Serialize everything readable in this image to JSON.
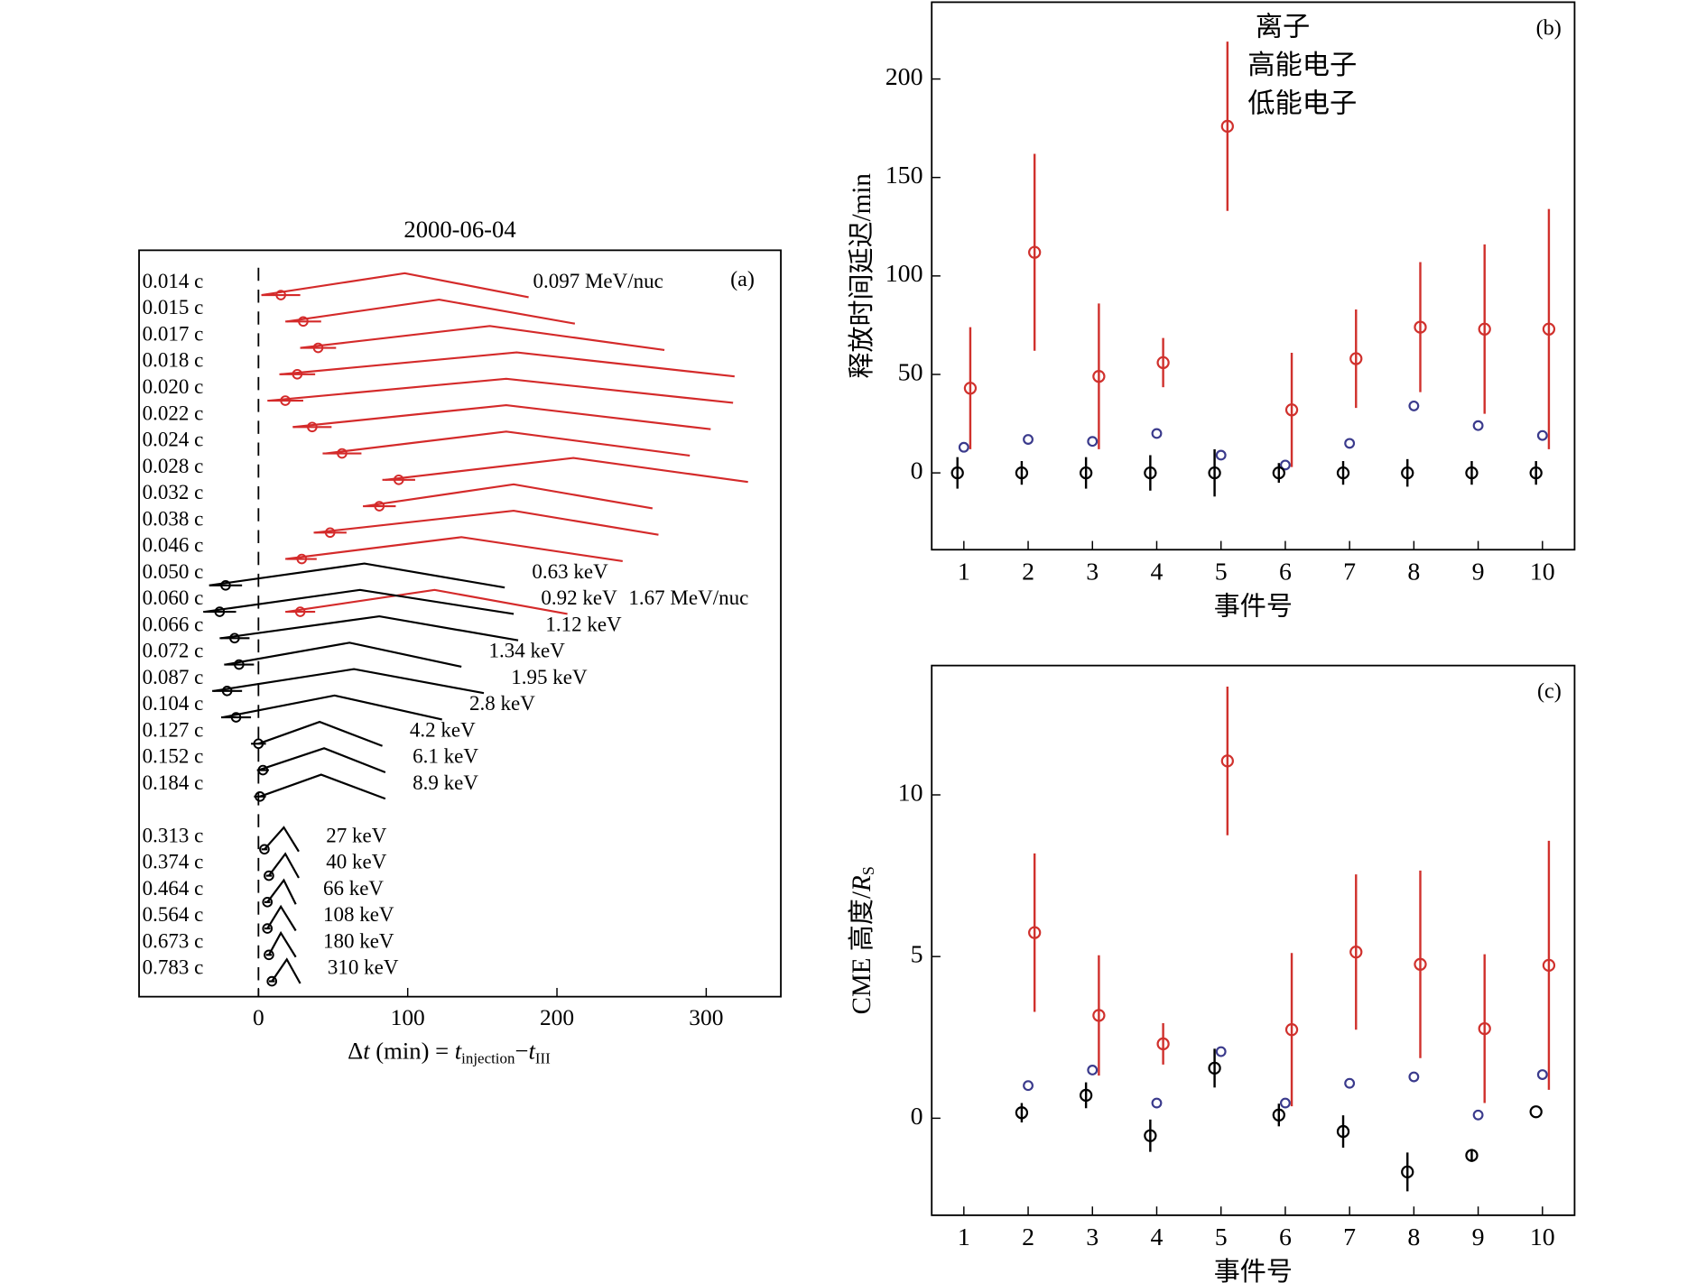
{
  "chart_data": [
    {
      "type": "dispersion",
      "title": "2000-06-04",
      "panel": "(a)",
      "categories": [
        "0.014 c",
        "0.015 c",
        "0.017 c",
        "0.018 c",
        "0.020 c",
        "0.022 c",
        "0.024 c",
        "0.028 c",
        "0.032 c",
        "0.038 c",
        "0.046 c",
        "0.050 c",
        "0.060 c",
        "0.066 c",
        "0.072 c",
        "0.087 c",
        "0.104 c",
        "0.127 c",
        "0.152 c",
        "0.184 c",
        null,
        "0.313 c",
        "0.374 c",
        "0.464 c",
        "0.564 c",
        "0.673 c",
        "0.783 c"
      ],
      "xlim": [
        -80,
        350
      ],
      "xticks": [
        0,
        100,
        200,
        300
      ],
      "reference_line": 0,
      "xlabel": [
        "Δ",
        "t",
        " (min) = ",
        "t",
        "injection",
        "−",
        "t",
        "III"
      ],
      "series": [
        {
          "name": "0.097 MeV/nuc",
          "color": "#d42a2a",
          "values": [
            15,
            30,
            40,
            26,
            18,
            36,
            56,
            94,
            81,
            48,
            29,
            null,
            null,
            null,
            null,
            null,
            null,
            null,
            null,
            null,
            null,
            null,
            null,
            null,
            null,
            null,
            null
          ],
          "errors": [
            13,
            12,
            12,
            12,
            12,
            13,
            13,
            11,
            11,
            11,
            10,
            null,
            null,
            null,
            null,
            null,
            null,
            null,
            null,
            null,
            null,
            null,
            null,
            null,
            null,
            null,
            null
          ],
          "profiles": [
            [
              2,
              98,
              181
            ],
            [
              19,
              121,
              212
            ],
            [
              28,
              155,
              272
            ],
            [
              15,
              173,
              319
            ],
            [
              7,
              166,
              318
            ],
            [
              23,
              166,
              303
            ],
            [
              45,
              166,
              289
            ],
            [
              85,
              211,
              328
            ],
            [
              71,
              171,
              264
            ],
            [
              38,
              171,
              268
            ],
            [
              18,
              136,
              244
            ],
            null,
            null,
            null,
            null,
            null,
            null,
            null,
            null,
            null,
            null,
            null,
            null,
            null,
            null,
            null,
            null
          ]
        },
        {
          "name": "1.67 MeV/nuc",
          "color": "#d42a2a",
          "values": [
            null,
            null,
            null,
            null,
            null,
            null,
            null,
            null,
            null,
            null,
            null,
            null,
            28,
            null,
            null,
            null,
            null,
            null,
            null,
            null,
            null,
            null,
            null,
            null,
            null,
            null,
            null
          ],
          "errors": [
            null,
            null,
            null,
            null,
            null,
            null,
            null,
            null,
            null,
            null,
            null,
            null,
            10,
            null,
            null,
            null,
            null,
            null,
            null,
            null,
            null,
            null,
            null,
            null,
            null,
            null,
            null
          ],
          "profiles": [
            null,
            null,
            null,
            null,
            null,
            null,
            null,
            null,
            null,
            null,
            null,
            null,
            [
              19,
              118,
              207
            ],
            null,
            null,
            null,
            null,
            null,
            null,
            null,
            null,
            null,
            null,
            null,
            null,
            null,
            null
          ]
        },
        {
          "color": "#000000",
          "values": [
            null,
            null,
            null,
            null,
            null,
            null,
            null,
            null,
            null,
            null,
            null,
            -22,
            -26,
            -16,
            -13,
            -21,
            -15,
            0,
            3,
            1,
            null,
            4,
            7,
            6,
            6,
            7,
            9
          ],
          "errors": [
            null,
            null,
            null,
            null,
            null,
            null,
            null,
            null,
            null,
            null,
            null,
            11,
            11,
            10,
            10,
            10,
            10,
            5,
            4,
            4,
            null,
            2,
            2,
            2,
            2,
            2,
            2
          ],
          "profiles": [
            null,
            null,
            null,
            null,
            null,
            null,
            null,
            null,
            null,
            null,
            null,
            [
              -33,
              71,
              165
            ],
            [
              -36,
              68,
              171
            ],
            [
              -25,
              81,
              174
            ],
            [
              -22,
              61,
              136
            ],
            [
              -30,
              64,
              151
            ],
            [
              -24,
              51,
              123
            ],
            [
              0,
              41,
              83
            ],
            [
              0,
              44,
              85
            ],
            [
              1,
              42,
              85
            ],
            null,
            [
              4,
              17,
              27
            ],
            [
              7,
              18,
              27
            ],
            [
              6,
              17,
              25
            ],
            [
              6,
              15,
              25
            ],
            [
              7,
              15,
              25
            ],
            [
              9,
              19,
              28
            ]
          ],
          "labels": [
            null,
            null,
            null,
            null,
            null,
            null,
            null,
            null,
            null,
            null,
            null,
            "0.63 keV",
            "0.92 keV",
            "1.12 keV",
            "1.34 keV",
            "1.95 keV",
            "2.8 keV",
            "4.2 keV",
            "6.1 keV",
            "8.9 keV",
            null,
            "27 keV",
            "40 keV",
            "66 keV",
            "108 keV",
            "180 keV",
            "310 keV"
          ]
        }
      ]
    },
    {
      "type": "scatter",
      "panel": "(b)",
      "ylabel": [
        "释放时间延迟/min"
      ],
      "xlabel": "事件号",
      "xlim": [
        0.5,
        10.5
      ],
      "xticks": [
        1,
        2,
        3,
        4,
        5,
        6,
        7,
        8,
        9,
        10
      ],
      "ylim": [
        -39,
        239
      ],
      "yticks": [
        0,
        50,
        100,
        150,
        200
      ],
      "legend": "top",
      "series": [
        {
          "name": "离子",
          "color": "#d0312d",
          "x": [
            1.1,
            2.1,
            3.1,
            4.1,
            5.1,
            6.1,
            7.1,
            8.1,
            9.1,
            10.1
          ],
          "values": [
            43,
            112,
            49,
            56,
            176,
            32,
            58,
            74,
            73,
            73
          ],
          "errors": [
            31,
            50,
            37,
            12.5,
            43,
            29,
            25,
            33,
            43,
            61
          ]
        },
        {
          "name": "高能电子",
          "color": "#3a3a8c",
          "x": [
            1,
            2,
            3,
            4,
            5,
            6,
            7,
            8,
            9,
            10
          ],
          "values": [
            13,
            17,
            16,
            20,
            9,
            4,
            15,
            34,
            24,
            19
          ]
        },
        {
          "name": "低能电子",
          "color": "#000000",
          "x": [
            0.9,
            1.9,
            2.9,
            3.9,
            4.9,
            5.9,
            6.9,
            7.9,
            8.9,
            9.9
          ],
          "values": [
            0,
            0,
            0,
            0,
            0,
            0,
            0,
            0,
            0,
            0
          ],
          "errors": [
            8,
            6,
            8,
            9,
            12,
            5,
            6,
            7,
            6,
            6
          ]
        }
      ]
    },
    {
      "type": "scatter",
      "panel": "(c)",
      "ylabel": [
        "CME 高度/",
        "R",
        "S"
      ],
      "xlabel": "事件号",
      "xlim": [
        0.5,
        10.5
      ],
      "xticks": [
        1,
        2,
        3,
        4,
        5,
        6,
        7,
        8,
        9,
        10
      ],
      "ylim": [
        -3,
        14
      ],
      "yticks": [
        0,
        5,
        10
      ],
      "series": [
        {
          "color": "#d0312d",
          "x": [
            1.1,
            2.1,
            3.1,
            4.1,
            5.1,
            6.1,
            7.1,
            8.1,
            9.1,
            10.1
          ],
          "values": [
            null,
            5.74,
            3.18,
            2.3,
            11.05,
            2.74,
            5.14,
            4.76,
            2.77,
            4.73
          ],
          "errors": [
            null,
            2.45,
            1.86,
            0.64,
            2.3,
            2.37,
            2.4,
            2.9,
            2.3,
            3.85
          ]
        },
        {
          "color": "#3a3a8c",
          "x": [
            1,
            2,
            3,
            4,
            5,
            6,
            7,
            8,
            9,
            10
          ],
          "values": [
            null,
            1.01,
            1.49,
            0.47,
            2.06,
            0.47,
            1.08,
            1.28,
            0.1,
            1.35
          ]
        },
        {
          "color": "#000000",
          "x": [
            0.9,
            1.9,
            2.9,
            3.9,
            4.9,
            5.9,
            6.9,
            7.9,
            8.9,
            9.9
          ],
          "values": [
            null,
            0.17,
            0.71,
            -0.54,
            1.55,
            0.1,
            -0.41,
            -1.66,
            -1.15,
            0.2
          ],
          "errors": [
            null,
            0.3,
            0.4,
            0.5,
            0.6,
            0.35,
            0.5,
            0.6,
            0.2,
            null
          ]
        }
      ]
    }
  ]
}
